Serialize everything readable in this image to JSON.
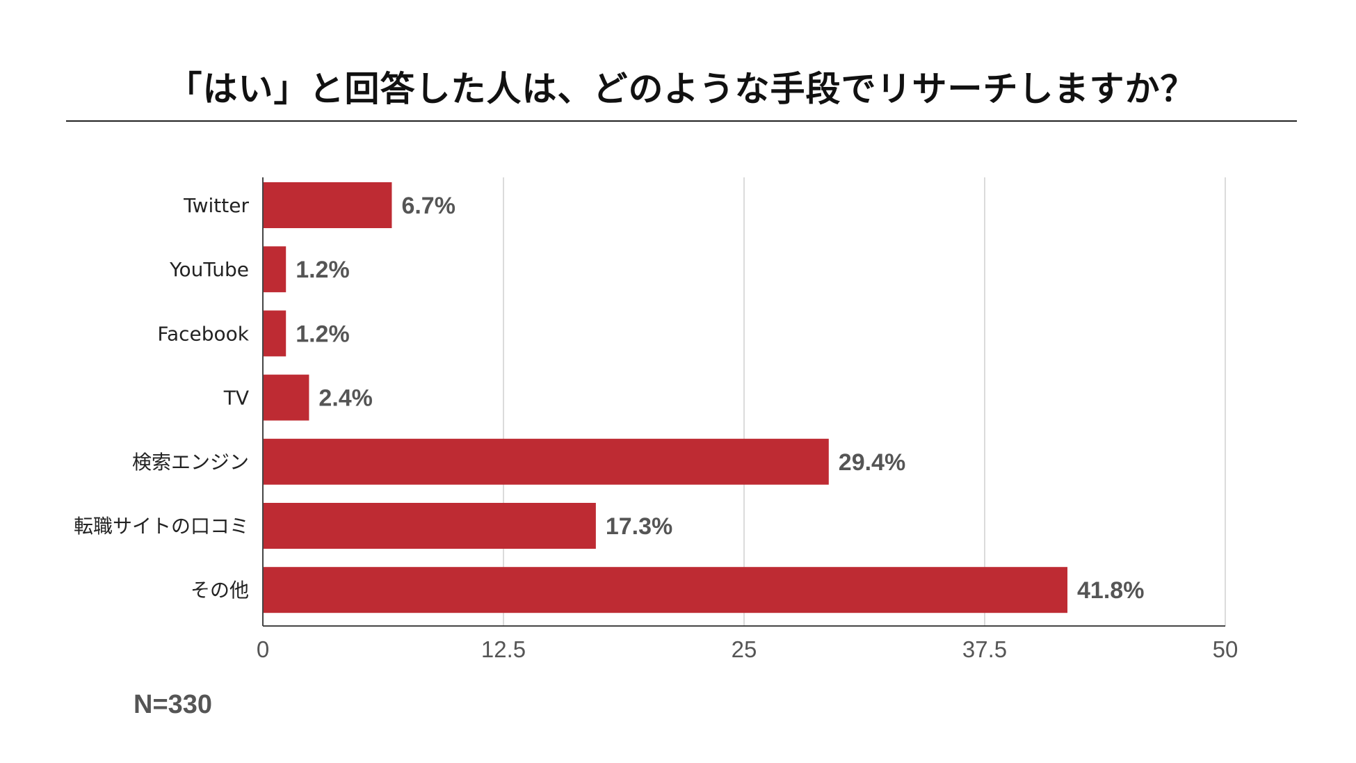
{
  "chart_data": {
    "type": "bar",
    "orientation": "horizontal",
    "title": "「はい」と回答した人は、どのような手段でリサーチしますか？",
    "categories": [
      "Twitter",
      "YouTube",
      "Facebook",
      "TV",
      "検索エンジン",
      "転職サイトの口コミ",
      "その他"
    ],
    "values": [
      6.7,
      1.2,
      1.2,
      2.4,
      29.4,
      17.3,
      41.8
    ],
    "value_labels": [
      "6.7%",
      "1.2%",
      "1.2%",
      "2.4%",
      "29.4%",
      "17.3%",
      "41.8%"
    ],
    "xlim": [
      0,
      50
    ],
    "xticks": [
      0,
      12.5,
      25,
      37.5,
      50
    ],
    "xtick_labels": [
      "0",
      "12.5",
      "25",
      "37.5",
      "50"
    ],
    "grid": "vertical",
    "bar_color": "#BE2B33",
    "note": "N=330"
  }
}
